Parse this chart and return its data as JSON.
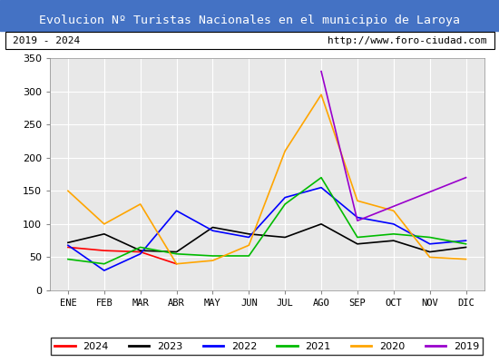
{
  "title": "Evolucion Nº Turistas Nacionales en el municipio de Laroya",
  "subtitle_left": "2019 - 2024",
  "subtitle_right": "http://www.foro-ciudad.com",
  "months": [
    "ENE",
    "FEB",
    "MAR",
    "ABR",
    "MAY",
    "JUN",
    "JUL",
    "AGO",
    "SEP",
    "OCT",
    "NOV",
    "DIC"
  ],
  "ylim": [
    0,
    350
  ],
  "yticks": [
    0,
    50,
    100,
    150,
    200,
    250,
    300,
    350
  ],
  "series": {
    "2024": {
      "color": "#ff0000",
      "values": [
        65,
        60,
        58,
        40,
        null,
        null,
        null,
        null,
        null,
        null,
        null,
        null
      ]
    },
    "2023": {
      "color": "#000000",
      "values": [
        72,
        85,
        60,
        58,
        95,
        85,
        80,
        100,
        70,
        75,
        58,
        65
      ]
    },
    "2022": {
      "color": "#0000ff",
      "values": [
        68,
        30,
        55,
        120,
        90,
        80,
        140,
        155,
        110,
        100,
        70,
        75
      ]
    },
    "2021": {
      "color": "#00bb00",
      "values": [
        47,
        40,
        65,
        55,
        52,
        52,
        130,
        170,
        80,
        85,
        80,
        70
      ]
    },
    "2020": {
      "color": "#ffa500",
      "values": [
        150,
        100,
        130,
        40,
        45,
        68,
        210,
        295,
        135,
        120,
        50,
        47
      ]
    },
    "2019": {
      "color": "#9900cc",
      "values": [
        null,
        null,
        null,
        null,
        null,
        null,
        null,
        330,
        105,
        null,
        null,
        170
      ]
    }
  },
  "title_bg_color": "#4472c4",
  "title_font_color": "#ffffff",
  "plot_bg_color": "#e8e8e8",
  "grid_color": "#ffffff"
}
